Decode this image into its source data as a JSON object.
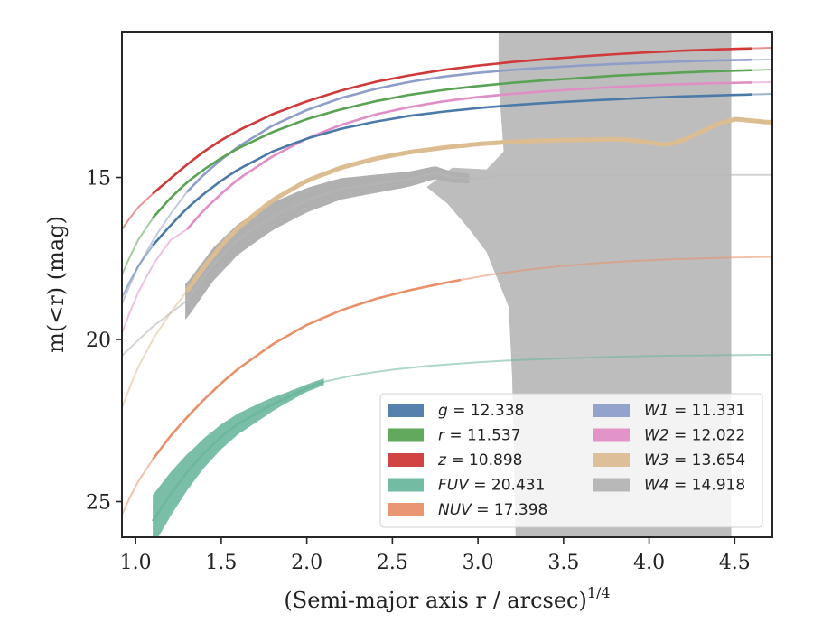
{
  "chart_data": {
    "type": "line",
    "xlabel": "(Semi-major axis r / arcsec)",
    "xlabel_power": "1/4",
    "ylabel": "m(<r) (mag)",
    "xlim": [
      0.92,
      4.72
    ],
    "ylim": [
      26.1,
      10.5
    ],
    "y_inverted": true,
    "x_ticks": [
      1.0,
      1.5,
      2.0,
      2.5,
      3.0,
      3.5,
      4.0,
      4.5
    ],
    "x_tick_labels": [
      "1.0",
      "1.5",
      "2.0",
      "2.5",
      "3.0",
      "3.5",
      "4.0",
      "4.5"
    ],
    "y_ticks": [
      15,
      20,
      25
    ],
    "y_tick_labels": [
      "15",
      "20",
      "25"
    ],
    "grid": false,
    "legend_position": "lower-right",
    "series": [
      {
        "name": "g = 12.338",
        "band": "g",
        "mag": "12.338",
        "color": "#4c7aa8",
        "x": [
          0.92,
          1.0,
          1.1,
          1.2,
          1.3,
          1.4,
          1.5,
          1.6,
          1.8,
          2.0,
          2.2,
          2.4,
          2.6,
          2.8,
          3.0,
          3.2,
          3.4,
          3.6,
          3.8,
          4.0,
          4.2,
          4.4,
          4.6,
          4.72
        ],
        "y": [
          18.7,
          17.85,
          17.1,
          16.5,
          15.95,
          15.5,
          15.1,
          14.75,
          14.2,
          13.8,
          13.5,
          13.28,
          13.1,
          12.97,
          12.86,
          12.77,
          12.7,
          12.64,
          12.59,
          12.54,
          12.5,
          12.47,
          12.44,
          12.42
        ],
        "solid_range": [
          1.1,
          4.6
        ]
      },
      {
        "name": "r = 11.537",
        "band": "r",
        "mag": "11.537",
        "color": "#5aa354",
        "x": [
          0.92,
          1.0,
          1.1,
          1.2,
          1.3,
          1.4,
          1.5,
          1.6,
          1.8,
          2.0,
          2.2,
          2.4,
          2.6,
          2.8,
          3.0,
          3.2,
          3.4,
          3.6,
          3.8,
          4.0,
          4.2,
          4.4,
          4.6,
          4.72
        ],
        "y": [
          18.0,
          17.05,
          16.25,
          15.65,
          15.15,
          14.75,
          14.4,
          14.1,
          13.6,
          13.2,
          12.9,
          12.65,
          12.45,
          12.3,
          12.18,
          12.08,
          12.0,
          11.93,
          11.86,
          11.81,
          11.76,
          11.72,
          11.69,
          11.67
        ],
        "solid_range": [
          1.1,
          4.6
        ]
      },
      {
        "name": "z = 10.898",
        "band": "z",
        "mag": "10.898",
        "color": "#d03a3a",
        "x": [
          0.92,
          1.0,
          1.1,
          1.2,
          1.3,
          1.4,
          1.5,
          1.6,
          1.8,
          2.0,
          2.2,
          2.4,
          2.6,
          2.8,
          3.0,
          3.2,
          3.4,
          3.6,
          3.8,
          4.0,
          4.2,
          4.4,
          4.6,
          4.72
        ],
        "y": [
          16.6,
          16.0,
          15.5,
          15.05,
          14.6,
          14.2,
          13.85,
          13.55,
          13.05,
          12.65,
          12.32,
          12.05,
          11.85,
          11.68,
          11.55,
          11.44,
          11.35,
          11.27,
          11.2,
          11.14,
          11.09,
          11.05,
          11.02,
          11.0
        ],
        "solid_range": [
          1.1,
          4.6
        ]
      },
      {
        "name": "FUV = 20.431",
        "band": "FUV",
        "mag": "20.431",
        "color": "#6cb79e",
        "x": [
          1.1,
          1.2,
          1.3,
          1.4,
          1.5,
          1.6,
          1.8,
          2.0,
          2.1,
          2.3,
          2.5,
          2.7,
          2.9,
          3.1,
          3.3,
          3.5,
          3.7,
          3.9,
          4.1,
          4.3,
          4.5,
          4.72
        ],
        "y": [
          25.6,
          24.8,
          24.1,
          23.5,
          23.0,
          22.6,
          22.0,
          21.5,
          21.3,
          21.08,
          20.93,
          20.82,
          20.74,
          20.67,
          20.62,
          20.58,
          20.55,
          20.52,
          20.5,
          20.49,
          20.48,
          20.47
        ],
        "band_width": [
          0.8,
          0.65,
          0.5,
          0.4,
          0.32,
          0.26,
          0.18,
          0.12,
          0.1
        ],
        "solid_range": [
          1.1,
          2.1
        ]
      },
      {
        "name": "NUV = 17.398",
        "band": "NUV",
        "mag": "17.398",
        "color": "#e8906a",
        "x": [
          0.92,
          1.0,
          1.1,
          1.2,
          1.3,
          1.4,
          1.5,
          1.6,
          1.8,
          2.0,
          2.2,
          2.4,
          2.6,
          2.8,
          2.9,
          3.1,
          3.3,
          3.5,
          3.7,
          3.9,
          4.1,
          4.3,
          4.5,
          4.72
        ],
        "y": [
          25.4,
          24.5,
          23.7,
          23.0,
          22.4,
          21.85,
          21.35,
          20.9,
          20.15,
          19.55,
          19.1,
          18.75,
          18.48,
          18.26,
          18.16,
          17.98,
          17.84,
          17.73,
          17.64,
          17.58,
          17.53,
          17.5,
          17.47,
          17.45
        ],
        "solid_range": [
          1.1,
          2.9
        ]
      },
      {
        "name": "W1 = 11.331",
        "band": "W1",
        "mag": "11.331",
        "color": "#8e9ec8",
        "x": [
          0.92,
          1.0,
          1.1,
          1.2,
          1.3,
          1.4,
          1.5,
          1.6,
          1.8,
          2.0,
          2.2,
          2.4,
          2.6,
          2.8,
          3.0,
          3.2,
          3.4,
          3.6,
          3.8,
          4.0,
          4.2,
          4.4,
          4.6,
          4.72
        ],
        "y": [
          18.9,
          17.9,
          16.95,
          16.15,
          15.45,
          14.9,
          14.45,
          14.05,
          13.4,
          12.92,
          12.55,
          12.27,
          12.05,
          11.89,
          11.77,
          11.68,
          11.61,
          11.55,
          11.5,
          11.46,
          11.42,
          11.39,
          11.37,
          11.36
        ],
        "solid_range": [
          1.3,
          4.6
        ]
      },
      {
        "name": "W2 = 12.022",
        "band": "W2",
        "mag": "12.022",
        "color": "#e08ec6",
        "x": [
          0.92,
          1.0,
          1.1,
          1.2,
          1.3,
          1.4,
          1.5,
          1.6,
          1.8,
          2.0,
          2.2,
          2.4,
          2.6,
          2.8,
          3.0,
          3.2,
          3.4,
          3.6,
          3.8,
          4.0,
          4.2,
          4.4,
          4.6,
          4.72
        ],
        "y": [
          19.8,
          18.7,
          17.7,
          16.95,
          16.6,
          16.0,
          15.5,
          15.05,
          14.35,
          13.8,
          13.38,
          13.06,
          12.83,
          12.65,
          12.52,
          12.42,
          12.34,
          12.27,
          12.21,
          12.16,
          12.12,
          12.09,
          12.07,
          12.06
        ],
        "solid_range": [
          1.3,
          4.6
        ]
      },
      {
        "name": "W3 = 13.654",
        "band": "W3",
        "mag": "13.654",
        "color": "#dcbd92",
        "x": [
          0.92,
          1.0,
          1.1,
          1.2,
          1.3,
          1.4,
          1.5,
          1.6,
          1.8,
          2.0,
          2.2,
          2.4,
          2.6,
          2.8,
          3.0,
          3.2,
          3.4,
          3.6,
          3.8,
          3.9,
          4.0,
          4.1,
          4.2,
          4.3,
          4.4,
          4.5,
          4.6,
          4.7
        ],
        "y": [
          22.1,
          21.0,
          20.0,
          19.2,
          18.5,
          17.75,
          17.1,
          16.55,
          15.7,
          15.1,
          14.7,
          14.42,
          14.22,
          14.08,
          13.97,
          13.9,
          13.86,
          13.84,
          13.82,
          13.85,
          13.92,
          14.0,
          13.85,
          13.6,
          13.35,
          13.2,
          13.25,
          13.3
        ],
        "solid_range": [
          1.3,
          4.72
        ]
      },
      {
        "name": "W4 = 14.918",
        "band": "W4",
        "mag": "14.918",
        "color": "#b8b8b8",
        "x": [
          0.92,
          1.1,
          1.3,
          1.45,
          1.6,
          1.8,
          2.0,
          2.2,
          2.4,
          2.6,
          2.75,
          2.85,
          3.0,
          3.1,
          3.15,
          3.2,
          3.5,
          4.0,
          4.5,
          4.72
        ],
        "y": [
          20.5,
          19.6,
          18.8,
          17.7,
          16.9,
          16.2,
          15.7,
          15.35,
          15.2,
          15.05,
          14.85,
          15.0,
          15.05,
          14.95,
          14.92,
          14.92,
          14.92,
          14.92,
          14.92,
          14.92
        ],
        "solid_range": [
          1.29,
          3.22
        ]
      }
    ]
  }
}
